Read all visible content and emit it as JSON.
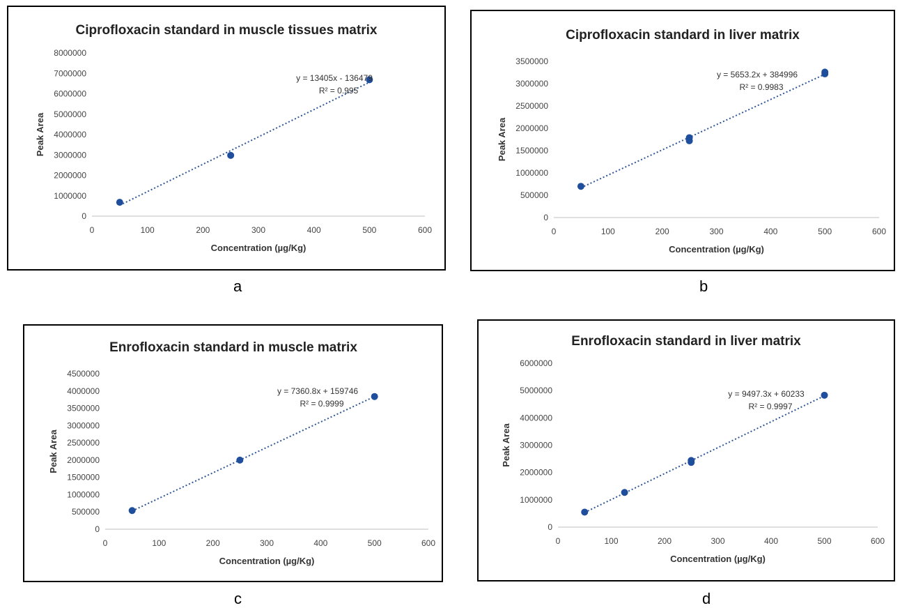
{
  "panel_letters": [
    "a",
    "b",
    "c",
    "d"
  ],
  "colors": {
    "points": "#1f4e9c",
    "trendline": "#2e5596",
    "frame": "#000000",
    "axis": "#bfbfbf"
  },
  "chart_data": [
    {
      "type": "scatter",
      "title": "Ciprofloxacin standard in muscle tissues matrix",
      "xlabel": "Concentration (µg/Kg)",
      "ylabel": "Peak Area",
      "xlim": [
        0,
        600
      ],
      "ylim": [
        0,
        8000000
      ],
      "xticks": [
        0,
        100,
        200,
        300,
        400,
        500,
        600
      ],
      "yticks": [
        0,
        1000000,
        2000000,
        3000000,
        4000000,
        5000000,
        6000000,
        7000000,
        8000000
      ],
      "points": [
        [
          50,
          680000
        ],
        [
          250,
          2980000
        ],
        [
          500,
          6690000
        ]
      ],
      "trendline": {
        "slope": 13405,
        "intercept": -136479,
        "x_range": [
          50,
          500
        ]
      },
      "equation": "y = 13405x - 136479",
      "r2": "R² = 0.995",
      "grid": false,
      "legend": "none"
    },
    {
      "type": "scatter",
      "title": "Ciprofloxacin standard in liver matrix",
      "xlabel": "Concentration (µg/Kg)",
      "ylabel": "Peak Area",
      "xlim": [
        0,
        600
      ],
      "ylim": [
        0,
        3500000
      ],
      "xticks": [
        0,
        100,
        200,
        300,
        400,
        500,
        600
      ],
      "yticks": [
        0,
        500000,
        1000000,
        1500000,
        2000000,
        2500000,
        3000000,
        3500000
      ],
      "points": [
        [
          50,
          700000
        ],
        [
          250,
          1720000
        ],
        [
          250,
          1790000
        ],
        [
          500,
          3220000
        ],
        [
          500,
          3260000
        ]
      ],
      "trendline": {
        "slope": 5653.2,
        "intercept": 384996,
        "x_range": [
          50,
          500
        ]
      },
      "equation": "y = 5653.2x + 384996",
      "r2": "R² = 0.9983",
      "grid": false,
      "legend": "none"
    },
    {
      "type": "scatter",
      "title": "Enrofloxacin standard in muscle matrix",
      "xlabel": "Concentration (µg/Kg)",
      "ylabel": "Peak Area",
      "xlim": [
        0,
        600
      ],
      "ylim": [
        0,
        4500000
      ],
      "xticks": [
        0,
        100,
        200,
        300,
        400,
        500,
        600
      ],
      "yticks": [
        0,
        500000,
        1000000,
        1500000,
        2000000,
        2500000,
        3000000,
        3500000,
        4000000,
        4500000
      ],
      "points": [
        [
          50,
          540000
        ],
        [
          250,
          2000000
        ],
        [
          500,
          3840000
        ]
      ],
      "trendline": {
        "slope": 7360.8,
        "intercept": 159746,
        "x_range": [
          50,
          500
        ]
      },
      "equation": "y = 7360.8x + 159746",
      "r2": "R² = 0.9999",
      "grid": false,
      "legend": "none"
    },
    {
      "type": "scatter",
      "title": "Enrofloxacin standard in liver matrix",
      "xlabel": "Concentration (µg/Kg)",
      "ylabel": "Peak Area",
      "xlim": [
        0,
        600
      ],
      "ylim": [
        0,
        6000000
      ],
      "xticks": [
        0,
        100,
        200,
        300,
        400,
        500,
        600
      ],
      "yticks": [
        0,
        1000000,
        2000000,
        3000000,
        4000000,
        5000000,
        6000000
      ],
      "points": [
        [
          50,
          550000
        ],
        [
          125,
          1270000
        ],
        [
          250,
          2370000
        ],
        [
          250,
          2440000
        ],
        [
          500,
          4830000
        ]
      ],
      "trendline": {
        "slope": 9497.3,
        "intercept": 60233,
        "x_range": [
          50,
          500
        ]
      },
      "equation": "y = 9497.3x + 60233",
      "r2": "R² = 0.9997",
      "grid": false,
      "legend": "none"
    }
  ]
}
